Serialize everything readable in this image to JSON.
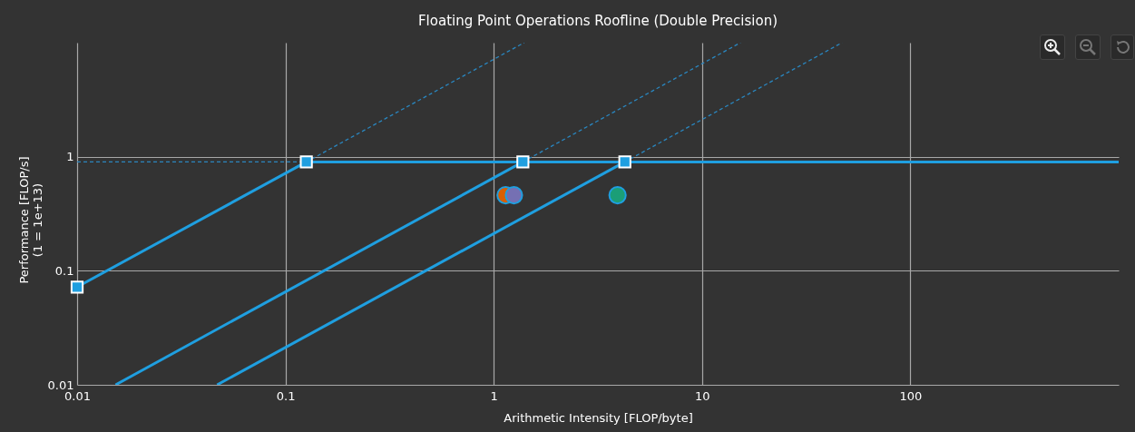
{
  "chart_data": {
    "type": "line",
    "title": "Floating Point Operations Roofline (Double Precision)",
    "xlabel": "Arithmetic Intensity [FLOP/byte]",
    "ylabel": "Performance [FLOP/s]\n(1 = 1e+13)",
    "log": "xy",
    "grid": true,
    "legend": false,
    "xlim": [
      0.01,
      1000
    ],
    "ylim": [
      0.01,
      10
    ],
    "xticks": [
      0.01,
      0.1,
      1,
      10,
      100
    ],
    "yticks": [
      0.01,
      0.1,
      1
    ],
    "series": [
      {
        "line_style": "dashed",
        "color": "#2a86bf",
        "x": [
          0.01,
          0.126
        ],
        "values": [
          0.9,
          0.9
        ]
      },
      {
        "line_style": "dashed",
        "color": "#2a86bf",
        "x": [
          0.126,
          1.4
        ],
        "values": [
          0.9,
          10
        ]
      },
      {
        "line_style": "dashed",
        "color": "#2a86bf",
        "x": [
          1.38,
          15.3
        ],
        "values": [
          0.9,
          10
        ]
      },
      {
        "line_style": "dashed",
        "color": "#2a86bf",
        "x": [
          4.26,
          47
        ],
        "values": [
          0.9,
          10
        ]
      },
      {
        "line_style": "solid",
        "color": "#1f9fe0",
        "x": [
          0.01,
          0.126,
          1000
        ],
        "values": [
          0.072,
          0.9,
          0.9
        ]
      },
      {
        "line_style": "solid",
        "color": "#1f9fe0",
        "x": [
          0.0153,
          1.38
        ],
        "values": [
          0.01,
          0.9
        ]
      },
      {
        "line_style": "solid",
        "color": "#1f9fe0",
        "x": [
          0.047,
          4.26
        ],
        "values": [
          0.01,
          0.9
        ]
      },
      {
        "type": "scatter",
        "marker": "square",
        "color": "#1f9fe0",
        "x": [
          0.01,
          0.126,
          1.38,
          4.26
        ],
        "values": [
          0.072,
          0.9,
          0.9,
          0.9
        ]
      },
      {
        "type": "scatter",
        "marker": "circle",
        "colors": [
          "#d95f02",
          "#7570b3",
          "#1b9e77"
        ],
        "x": [
          1.14,
          1.25,
          3.93
        ],
        "values": [
          0.46,
          0.46,
          0.46
        ]
      }
    ]
  }
}
